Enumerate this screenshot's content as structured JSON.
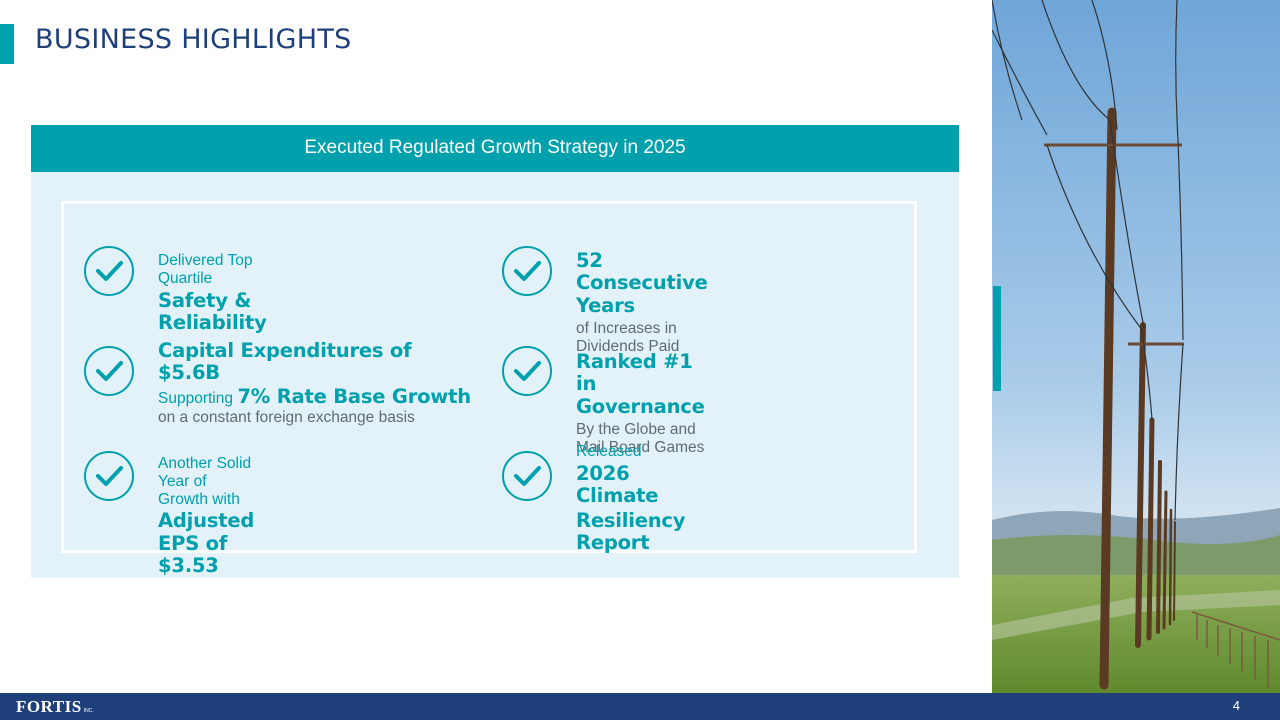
{
  "slide": {
    "title": "BUSINESS HIGHLIGHTS",
    "page_number": "4"
  },
  "banner": {
    "text": "Executed Regulated Growth Strategy in 2025"
  },
  "highlights": [
    {
      "pre": "Delivered Top Quartile",
      "headline": "Safety & Reliability",
      "icon": "check-circle-icon"
    },
    {
      "headline": "52 Consecutive Years",
      "sub": "of Increases in Dividends Paid",
      "icon": "check-circle-icon"
    },
    {
      "headline": "Capital Expenditures of $5.6B",
      "sub_prefix": "Supporting",
      "sub_bold": "7% Rate Base Growth",
      "sub2": "on a constant foreign exchange basis",
      "icon": "check-circle-icon"
    },
    {
      "headline": "Ranked #1 in Governance",
      "sub": "By the Globe and Mail Board Games",
      "icon": "check-circle-icon"
    },
    {
      "pre": "Another Solid Year of Growth with",
      "headline": "Adjusted EPS of $3.53",
      "icon": "check-circle-icon"
    },
    {
      "pre": "Released",
      "headline_line1": "2026 Climate",
      "headline_line2": "Resiliency Report",
      "icon": "check-circle-icon"
    }
  ],
  "footer": {
    "logo_text": "FORTIS",
    "logo_suffix": "INC."
  },
  "colors": {
    "teal": "#00a0ad",
    "navy": "#1f3f7a",
    "panel": "#e2f2f8"
  }
}
